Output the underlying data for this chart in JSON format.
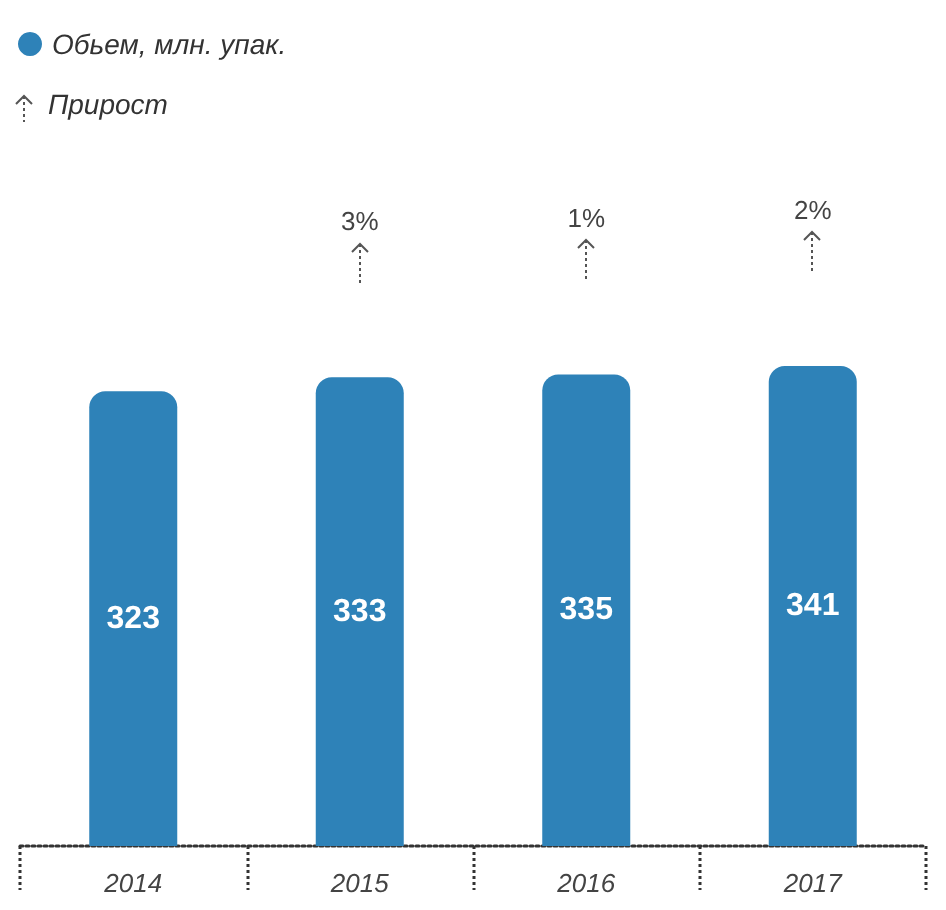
{
  "chart_data": {
    "type": "bar",
    "categories": [
      "2014",
      "2015",
      "2016",
      "2017"
    ],
    "series": [
      {
        "name": "Обьем, млн. упак.",
        "color": "#2e82b8",
        "values": [
          323,
          333,
          335,
          341
        ]
      }
    ],
    "data_labels": true,
    "legend": "top left",
    "annotations": [
      "Прирост",
      "3%",
      "1%",
      "2%"
    ]
  }
}
